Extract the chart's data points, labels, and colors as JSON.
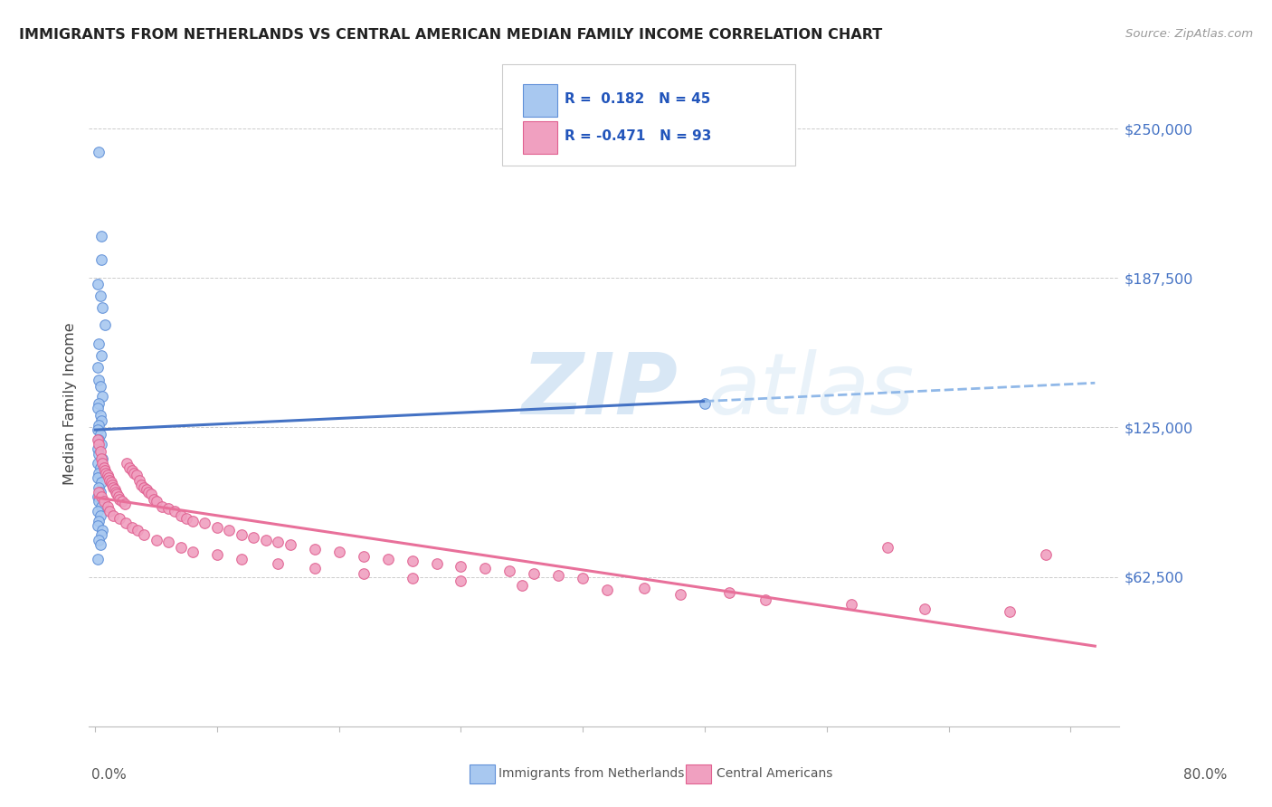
{
  "title": "IMMIGRANTS FROM NETHERLANDS VS CENTRAL AMERICAN MEDIAN FAMILY INCOME CORRELATION CHART",
  "source": "Source: ZipAtlas.com",
  "ylabel": "Median Family Income",
  "y_ticks": [
    62500,
    125000,
    187500,
    250000
  ],
  "y_tick_labels": [
    "$62,500",
    "$125,000",
    "$187,500",
    "$250,000"
  ],
  "xlim_min": -0.005,
  "xlim_max": 0.84,
  "ylim_min": 0,
  "ylim_max": 270000,
  "color_netherlands": "#A8C8F0",
  "color_netherlands_edge": "#6090D8",
  "color_central": "#F0A0C0",
  "color_central_edge": "#E06090",
  "color_netherlands_line": "#4472C4",
  "color_central_line": "#E8709A",
  "color_dashed": "#90B8E8",
  "watermark_zip": "ZIP",
  "watermark_atlas": "atlas",
  "nl_x": [
    0.003,
    0.005,
    0.005,
    0.002,
    0.004,
    0.006,
    0.008,
    0.003,
    0.005,
    0.002,
    0.003,
    0.004,
    0.006,
    0.003,
    0.002,
    0.004,
    0.005,
    0.003,
    0.002,
    0.004,
    0.003,
    0.005,
    0.002,
    0.003,
    0.006,
    0.002,
    0.004,
    0.003,
    0.002,
    0.005,
    0.003,
    0.004,
    0.002,
    0.003,
    0.005,
    0.002,
    0.004,
    0.003,
    0.002,
    0.006,
    0.005,
    0.003,
    0.004,
    0.5,
    0.002
  ],
  "nl_y": [
    240000,
    205000,
    195000,
    185000,
    180000,
    175000,
    168000,
    160000,
    155000,
    150000,
    145000,
    142000,
    138000,
    135000,
    133000,
    130000,
    128000,
    126000,
    124000,
    122000,
    120000,
    118000,
    116000,
    114000,
    112000,
    110000,
    108000,
    106000,
    104000,
    102000,
    100000,
    98000,
    96000,
    94000,
    92000,
    90000,
    88000,
    86000,
    84000,
    82000,
    80000,
    78000,
    76000,
    135000,
    70000
  ],
  "ca_x": [
    0.002,
    0.003,
    0.004,
    0.005,
    0.006,
    0.007,
    0.008,
    0.009,
    0.01,
    0.011,
    0.012,
    0.013,
    0.014,
    0.015,
    0.016,
    0.017,
    0.018,
    0.019,
    0.02,
    0.022,
    0.024,
    0.026,
    0.028,
    0.03,
    0.032,
    0.034,
    0.036,
    0.038,
    0.04,
    0.042,
    0.044,
    0.046,
    0.048,
    0.05,
    0.055,
    0.06,
    0.065,
    0.07,
    0.075,
    0.08,
    0.09,
    0.1,
    0.11,
    0.12,
    0.13,
    0.14,
    0.15,
    0.16,
    0.18,
    0.2,
    0.22,
    0.24,
    0.26,
    0.28,
    0.3,
    0.32,
    0.34,
    0.36,
    0.38,
    0.4,
    0.003,
    0.005,
    0.007,
    0.01,
    0.012,
    0.015,
    0.02,
    0.025,
    0.03,
    0.035,
    0.04,
    0.05,
    0.06,
    0.07,
    0.08,
    0.1,
    0.12,
    0.15,
    0.18,
    0.22,
    0.26,
    0.3,
    0.35,
    0.42,
    0.48,
    0.55,
    0.62,
    0.68,
    0.75,
    0.78,
    0.45,
    0.52,
    0.65
  ],
  "ca_y": [
    120000,
    118000,
    115000,
    112000,
    110000,
    108000,
    107000,
    106000,
    105000,
    104000,
    103000,
    102000,
    101000,
    100000,
    99000,
    98000,
    97000,
    96000,
    95000,
    94000,
    93000,
    110000,
    108000,
    107000,
    106000,
    105000,
    103000,
    101000,
    100000,
    99000,
    98000,
    97000,
    95000,
    94000,
    92000,
    91000,
    90000,
    88000,
    87000,
    86000,
    85000,
    83000,
    82000,
    80000,
    79000,
    78000,
    77000,
    76000,
    74000,
    73000,
    71000,
    70000,
    69000,
    68000,
    67000,
    66000,
    65000,
    64000,
    63000,
    62000,
    98000,
    96000,
    94000,
    92000,
    90000,
    88000,
    87000,
    85000,
    83000,
    82000,
    80000,
    78000,
    77000,
    75000,
    73000,
    72000,
    70000,
    68000,
    66000,
    64000,
    62000,
    61000,
    59000,
    57000,
    55000,
    53000,
    51000,
    49000,
    48000,
    72000,
    58000,
    56000,
    75000
  ]
}
